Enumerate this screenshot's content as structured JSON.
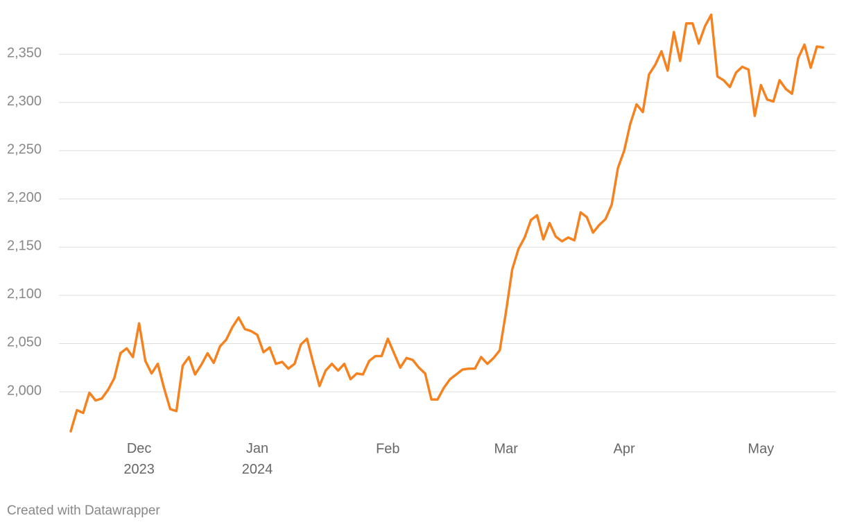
{
  "chart_data": {
    "type": "line",
    "categories": [
      null,
      null,
      null,
      null,
      null,
      null,
      null,
      null,
      null,
      null,
      null,
      "Dec 2023",
      null,
      null,
      null,
      null,
      null,
      null,
      null,
      null,
      null,
      null,
      null,
      null,
      null,
      null,
      null,
      null,
      null,
      null,
      "Jan 2024",
      null,
      null,
      null,
      null,
      null,
      null,
      null,
      null,
      null,
      null,
      null,
      null,
      null,
      null,
      null,
      null,
      null,
      null,
      null,
      null,
      "Feb",
      null,
      null,
      null,
      null,
      null,
      null,
      null,
      null,
      null,
      null,
      null,
      null,
      null,
      null,
      null,
      null,
      null,
      null,
      "Mar",
      null,
      null,
      null,
      null,
      null,
      null,
      null,
      null,
      null,
      null,
      null,
      null,
      null,
      null,
      null,
      null,
      null,
      null,
      "Apr",
      null,
      null,
      null,
      null,
      null,
      null,
      null,
      null,
      null,
      null,
      null,
      null,
      null,
      null,
      null,
      null,
      null,
      null,
      null,
      null,
      null,
      "May",
      null,
      null,
      null,
      null,
      null,
      null,
      null,
      null,
      null,
      null
    ],
    "series": [
      {
        "color": "#f5821f",
        "values": [
          1959,
          1981,
          1978,
          1999,
          1991,
          1993,
          2002,
          2014,
          2040,
          2045,
          2036,
          2071,
          2032,
          2019,
          2029,
          2004,
          1982,
          1980,
          2027,
          2036,
          2018,
          2028,
          2040,
          2030,
          2047,
          2054,
          2067,
          2077,
          2065,
          2063,
          2059,
          2041,
          2046,
          2029,
          2031,
          2024,
          2029,
          2049,
          2055,
          2030,
          2006,
          2022,
          2029,
          2022,
          2029,
          2013,
          2019,
          2018,
          2032,
          2037,
          2037,
          2055,
          2040,
          2025,
          2035,
          2033,
          2025,
          2019,
          1992,
          1992,
          2004,
          2013,
          2018,
          2023,
          2024,
          2024,
          2036,
          2029,
          2035,
          2043,
          2083,
          2127,
          2148,
          2160,
          2178,
          2183,
          2158,
          2175,
          2161,
          2156,
          2160,
          2157,
          2186,
          2181,
          2165,
          2173,
          2179,
          2194,
          2232,
          2250,
          2278,
          2298,
          2290,
          2329,
          2339,
          2353,
          2333,
          2373,
          2343,
          2382,
          2382,
          2361,
          2379,
          2391,
          2327,
          2323,
          2316,
          2331,
          2337,
          2334,
          2286,
          2318,
          2303,
          2301,
          2323,
          2314,
          2309,
          2346,
          2360,
          2336,
          2358,
          2357
        ]
      }
    ],
    "ylim": [
      1955,
      2395
    ],
    "yticks": [
      {
        "value": 2000,
        "label": "2,000"
      },
      {
        "value": 2050,
        "label": "2,050"
      },
      {
        "value": 2100,
        "label": "2,100"
      },
      {
        "value": 2150,
        "label": "2,150"
      },
      {
        "value": 2200,
        "label": "2,200"
      },
      {
        "value": 2250,
        "label": "2,250"
      },
      {
        "value": 2300,
        "label": "2,300"
      },
      {
        "value": 2350,
        "label": "2,350"
      }
    ],
    "grid": true,
    "footer": "Created with Datawrapper"
  }
}
